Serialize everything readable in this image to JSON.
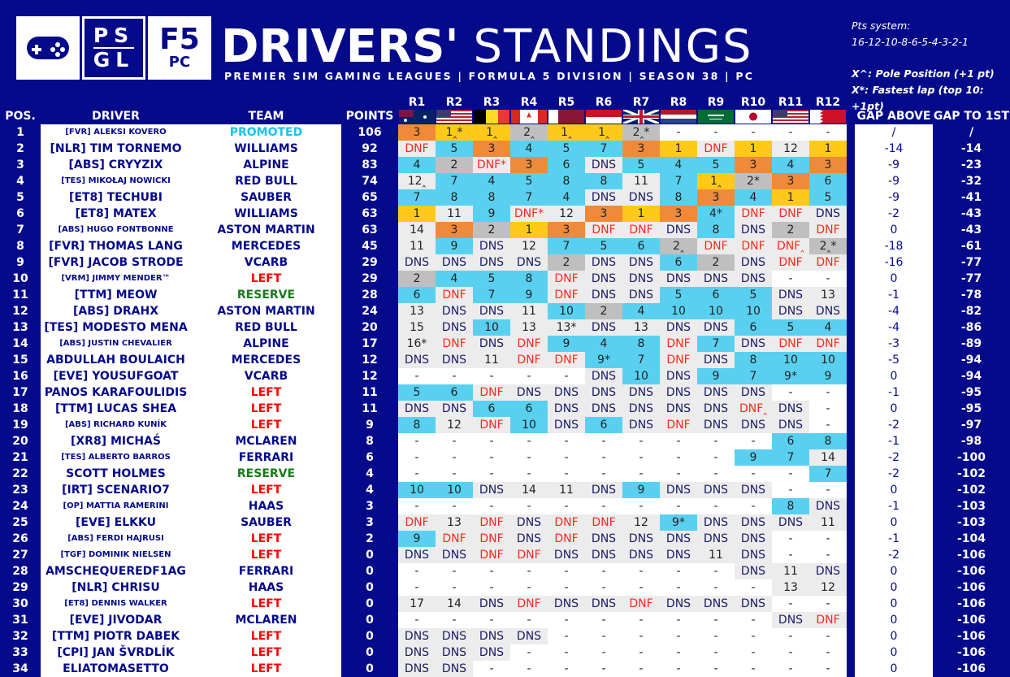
{
  "header": {
    "logo_psgl_top": "PS",
    "logo_psgl_bottom": "GL",
    "logo_f5_big": "F5",
    "logo_f5_small": "PC",
    "title_bold": "DRIVERS'",
    "title_light": "STANDINGS",
    "subtitle": "PREMIER SIM GAMING LEAGUES | FORMULA 5 DIVISION | SEASON 38 | PC",
    "pts_label": "Pts system:",
    "pts_values": "16-12-10-8-6-5-4-3-2-1",
    "legend_pole": "X^: Pole Position (+1 pt)",
    "legend_fastest": "X*: Fastest lap (top 10: +1pt)"
  },
  "columns": {
    "pos": "POS.",
    "driver": "DRIVER",
    "team": "TEAM",
    "points": "POINTS",
    "gap_above": "GAP ABOVE",
    "gap_first": "GAP TO 1ST",
    "rounds": [
      "R1",
      "R2",
      "R3",
      "R4",
      "R5",
      "R6",
      "R7",
      "R8",
      "R9",
      "R10",
      "R11",
      "R12"
    ],
    "flags": [
      "australia-flag",
      "usa-flag",
      "belgium-flag",
      "canada-flag",
      "qatar-flag",
      "monaco-flag",
      "uk-flag",
      "netherlands-flag",
      "saudi-arabia-flag",
      "japan-flag",
      "usa-flag",
      "bahrain-flag"
    ]
  },
  "rows": [
    {
      "pos": "1",
      "driver": "[FVR] ALEKSI KOVERO",
      "team": "PROMOTED",
      "points": "106",
      "results": [
        "3",
        "1^*",
        "1^",
        "2^",
        "1^",
        "1^",
        "2^*",
        "-",
        "-",
        "-",
        "-",
        "-"
      ],
      "gap_above": "/",
      "gap_first": "/"
    },
    {
      "pos": "2",
      "driver": "[NLR] TIM TORNEMO",
      "team": "WILLIAMS",
      "points": "92",
      "results": [
        "DNF",
        "5",
        "3",
        "4",
        "5",
        "7",
        "3",
        "1",
        "DNF",
        "1",
        "12",
        "1"
      ],
      "gap_above": "-14",
      "gap_first": "-14"
    },
    {
      "pos": "3",
      "driver": "[ABS] CRYYZIX",
      "team": "ALPINE",
      "points": "83",
      "results": [
        "4",
        "2",
        "DNF*",
        "3",
        "6",
        "DNS",
        "5",
        "4",
        "5",
        "3",
        "4",
        "3"
      ],
      "gap_above": "-9",
      "gap_first": "-23"
    },
    {
      "pos": "4",
      "driver": "[TES] MIKOŁAJ NOWICKI",
      "team": "RED BULL",
      "points": "74",
      "results": [
        "12^",
        "7",
        "4",
        "5",
        "8",
        "8",
        "11",
        "7",
        "1^",
        "2*",
        "3",
        "6"
      ],
      "gap_above": "-9",
      "gap_first": "-32"
    },
    {
      "pos": "5",
      "driver": "[ET8] TECHUBI",
      "team": "SAUBER",
      "points": "65",
      "results": [
        "7",
        "8",
        "8",
        "7",
        "4",
        "DNS",
        "DNS",
        "8",
        "3",
        "4",
        "1",
        "5"
      ],
      "gap_above": "-9",
      "gap_first": "-41"
    },
    {
      "pos": "6",
      "driver": "[ET8] MATEX",
      "team": "WILLIAMS",
      "points": "63",
      "results": [
        "1",
        "11",
        "9",
        "DNF*",
        "12",
        "3",
        "1",
        "3",
        "4*",
        "DNF",
        "DNF",
        "DNS"
      ],
      "gap_above": "-2",
      "gap_first": "-43"
    },
    {
      "pos": "7",
      "driver": "[ABS] HUGO FONTBONNE",
      "team": "ASTON MARTIN",
      "points": "63",
      "results": [
        "14",
        "3",
        "2",
        "1",
        "3",
        "DNF",
        "DNF",
        "DNS",
        "8",
        "DNS",
        "2",
        "DNF"
      ],
      "gap_above": "0",
      "gap_first": "-43"
    },
    {
      "pos": "8",
      "driver": "[FVR] THOMAS LANG",
      "team": "MERCEDES",
      "points": "45",
      "results": [
        "11",
        "9",
        "DNS",
        "12",
        "7",
        "5",
        "6",
        "2^",
        "DNF",
        "DNF",
        "DNF^",
        "2^*"
      ],
      "gap_above": "-18",
      "gap_first": "-61"
    },
    {
      "pos": "9",
      "driver": "[FVR] JACOB STRODE",
      "team": "VCARB",
      "points": "29",
      "results": [
        "DNS",
        "DNS",
        "DNS",
        "DNS",
        "2",
        "DNS",
        "DNS",
        "6",
        "2",
        "DNS",
        "DNF",
        "DNF"
      ],
      "gap_above": "-16",
      "gap_first": "-77"
    },
    {
      "pos": "10",
      "driver": "[VRM] JIMMY MENDER™",
      "team": "LEFT",
      "points": "29",
      "results": [
        "2",
        "4",
        "5",
        "8",
        "DNF",
        "DNS",
        "DNS",
        "DNS",
        "DNS",
        "DNS",
        "-",
        "-"
      ],
      "gap_above": "0",
      "gap_first": "-77"
    },
    {
      "pos": "11",
      "driver": "[TTM] MEOW",
      "team": "RESERVE",
      "points": "28",
      "results": [
        "6",
        "DNF",
        "7",
        "9",
        "DNF",
        "DNS",
        "DNS",
        "5",
        "6",
        "5",
        "DNS",
        "13"
      ],
      "gap_above": "-1",
      "gap_first": "-78"
    },
    {
      "pos": "12",
      "driver": "[ABS] DRAHX",
      "team": "ASTON MARTIN",
      "points": "24",
      "results": [
        "13",
        "DNS",
        "DNS",
        "11",
        "10",
        "2",
        "4",
        "10",
        "10",
        "10",
        "DNS",
        "DNS"
      ],
      "gap_above": "-4",
      "gap_first": "-82"
    },
    {
      "pos": "13",
      "driver": "[TES] MODESTO MENA",
      "team": "RED BULL",
      "points": "20",
      "results": [
        "15",
        "DNS",
        "10",
        "13",
        "13*",
        "DNS",
        "13",
        "DNS",
        "DNS",
        "6",
        "5",
        "4"
      ],
      "gap_above": "-4",
      "gap_first": "-86"
    },
    {
      "pos": "14",
      "driver": "[ABS] JUSTIN CHEVALIER",
      "team": "ALPINE",
      "points": "17",
      "results": [
        "16*",
        "DNF",
        "DNS",
        "DNF",
        "9",
        "4",
        "8",
        "DNF",
        "7",
        "DNS",
        "DNF",
        "DNF"
      ],
      "gap_above": "-3",
      "gap_first": "-89"
    },
    {
      "pos": "15",
      "driver": "ABDULLAH BOULAICH",
      "team": "MERCEDES",
      "points": "12",
      "results": [
        "DNS",
        "DNS",
        "11",
        "DNF",
        "DNF",
        "9*",
        "7",
        "DNF",
        "DNS",
        "8",
        "10",
        "10"
      ],
      "gap_above": "-5",
      "gap_first": "-94"
    },
    {
      "pos": "16",
      "driver": "[EVE] YOUSUFGOAT",
      "team": "VCARB",
      "points": "12",
      "results": [
        "-",
        "-",
        "-",
        "-",
        "-",
        "DNS",
        "10",
        "DNS",
        "9",
        "7",
        "9*",
        "9"
      ],
      "gap_above": "0",
      "gap_first": "-94"
    },
    {
      "pos": "17",
      "driver": "PANOS KARAFOULIDIS",
      "team": "LEFT",
      "points": "11",
      "results": [
        "5",
        "6",
        "DNF",
        "DNS",
        "DNS",
        "DNS",
        "DNS",
        "DNS",
        "DNS",
        "DNS",
        "-",
        "-"
      ],
      "gap_above": "-1",
      "gap_first": "-95"
    },
    {
      "pos": "18",
      "driver": "[TTM] LUCAS SHEA",
      "team": "LEFT",
      "points": "11",
      "results": [
        "DNS",
        "DNS",
        "6",
        "6",
        "DNS",
        "DNS",
        "DNS",
        "DNS",
        "DNS",
        "DNF^",
        "DNS",
        "-"
      ],
      "gap_above": "0",
      "gap_first": "-95"
    },
    {
      "pos": "19",
      "driver": "[ABS] RICHARD KUNÍK",
      "team": "LEFT",
      "points": "9",
      "results": [
        "8",
        "12",
        "DNF",
        "10",
        "DNS",
        "6",
        "DNS",
        "DNF",
        "DNS",
        "DNS",
        "DNS",
        "-"
      ],
      "gap_above": "-2",
      "gap_first": "-97"
    },
    {
      "pos": "20",
      "driver": "[XR8] MICHAŚ",
      "team": "MCLAREN",
      "points": "8",
      "results": [
        "-",
        "-",
        "-",
        "-",
        "-",
        "-",
        "-",
        "-",
        "-",
        "-",
        "6",
        "8"
      ],
      "gap_above": "-1",
      "gap_first": "-98"
    },
    {
      "pos": "21",
      "driver": "[TES] ALBERTO BARROS",
      "team": "FERRARI",
      "points": "6",
      "results": [
        "-",
        "-",
        "-",
        "-",
        "-",
        "-",
        "-",
        "-",
        "-",
        "9",
        "7",
        "14"
      ],
      "gap_above": "-2",
      "gap_first": "-100"
    },
    {
      "pos": "22",
      "driver": "SCOTT HOLMES",
      "team": "RESERVE",
      "points": "4",
      "results": [
        "-",
        "-",
        "-",
        "-",
        "-",
        "-",
        "-",
        "-",
        "-",
        "-",
        "-",
        "7"
      ],
      "gap_above": "-2",
      "gap_first": "-102"
    },
    {
      "pos": "23",
      "driver": "[IRT] SCENARIO7",
      "team": "LEFT",
      "points": "4",
      "results": [
        "10",
        "10",
        "DNS",
        "14",
        "11",
        "DNS",
        "9",
        "DNS",
        "DNS",
        "DNS",
        "-",
        "-"
      ],
      "gap_above": "0",
      "gap_first": "-102"
    },
    {
      "pos": "24",
      "driver": "[OP] MATTIA RAMERINI",
      "team": "HAAS",
      "points": "3",
      "results": [
        "-",
        "-",
        "-",
        "-",
        "-",
        "-",
        "-",
        "-",
        "-",
        "-",
        "8",
        "DNS"
      ],
      "gap_above": "-1",
      "gap_first": "-103"
    },
    {
      "pos": "25",
      "driver": "[EVE] ELKKU",
      "team": "SAUBER",
      "points": "3",
      "results": [
        "DNF",
        "13",
        "DNF",
        "DNS",
        "DNF",
        "DNF",
        "12",
        "9*",
        "DNS",
        "DNS",
        "DNS",
        "11"
      ],
      "gap_above": "0",
      "gap_first": "-103"
    },
    {
      "pos": "26",
      "driver": "[ABS] FERDI HAJRUSI",
      "team": "LEFT",
      "points": "2",
      "results": [
        "9",
        "DNF",
        "DNF",
        "DNS",
        "DNF",
        "DNS",
        "DNS",
        "DNS",
        "DNS",
        "DNS",
        "-",
        "-"
      ],
      "gap_above": "-1",
      "gap_first": "-104"
    },
    {
      "pos": "27",
      "driver": "[TGF] DOMINIK NIELSEN",
      "team": "LEFT",
      "points": "0",
      "results": [
        "DNS",
        "DNS",
        "DNF",
        "DNF",
        "DNS",
        "DNS",
        "DNS",
        "DNS",
        "11",
        "DNS",
        "-",
        "-"
      ],
      "gap_above": "-2",
      "gap_first": "-106"
    },
    {
      "pos": "28",
      "driver": "AMSCHEQUEREDF1AG",
      "team": "FERRARI",
      "points": "0",
      "results": [
        "-",
        "-",
        "-",
        "-",
        "-",
        "-",
        "-",
        "-",
        "-",
        "DNS",
        "11",
        "DNS"
      ],
      "gap_above": "0",
      "gap_first": "-106"
    },
    {
      "pos": "29",
      "driver": "[NLR] CHRISU",
      "team": "HAAS",
      "points": "0",
      "results": [
        "-",
        "-",
        "-",
        "-",
        "-",
        "-",
        "-",
        "-",
        "-",
        "-",
        "13",
        "12"
      ],
      "gap_above": "0",
      "gap_first": "-106"
    },
    {
      "pos": "30",
      "driver": "[ET8] DENNIS WALKER",
      "team": "LEFT",
      "points": "0",
      "results": [
        "17",
        "14",
        "DNS",
        "DNF",
        "DNS",
        "DNS",
        "DNF",
        "DNS",
        "DNS",
        "DNS",
        "-",
        "-"
      ],
      "gap_above": "0",
      "gap_first": "-106"
    },
    {
      "pos": "31",
      "driver": "[EVE] JIVODAR",
      "team": "MCLAREN",
      "points": "0",
      "results": [
        "-",
        "-",
        "-",
        "-",
        "-",
        "-",
        "-",
        "-",
        "-",
        "-",
        "DNS",
        "DNF"
      ],
      "gap_above": "0",
      "gap_first": "-106"
    },
    {
      "pos": "32",
      "driver": "[TTM] PIOTR DABEK",
      "team": "LEFT",
      "points": "0",
      "results": [
        "DNS",
        "DNS",
        "DNS",
        "DNS",
        "-",
        "-",
        "-",
        "-",
        "-",
        "-",
        "-",
        "-"
      ],
      "gap_above": "0",
      "gap_first": "-106"
    },
    {
      "pos": "33",
      "driver": "[CPI] JAN ŠVRDLÍK",
      "team": "LEFT",
      "points": "0",
      "results": [
        "DNS",
        "DNS",
        "DNS",
        "-",
        "-",
        "-",
        "-",
        "-",
        "-",
        "-",
        "-",
        "-"
      ],
      "gap_above": "0",
      "gap_first": "-106"
    },
    {
      "pos": "34",
      "driver": "ELIATOMASETTO",
      "team": "LEFT",
      "points": "0",
      "results": [
        "DNS",
        "DNS",
        "-",
        "-",
        "-",
        "-",
        "-",
        "-",
        "-",
        "-",
        "-",
        "-"
      ],
      "gap_above": "0",
      "gap_first": "-106"
    }
  ],
  "colors": {
    "background": "#050a8a",
    "first": "#ffc91a",
    "second": "#bfbfbf",
    "third": "#ef8a3a",
    "points": "#5ad0f0",
    "no_points": "#ececec",
    "left_team": "#ff0000",
    "reserve_team": "#1a7a1a",
    "promoted_team": "#16c3ee"
  }
}
